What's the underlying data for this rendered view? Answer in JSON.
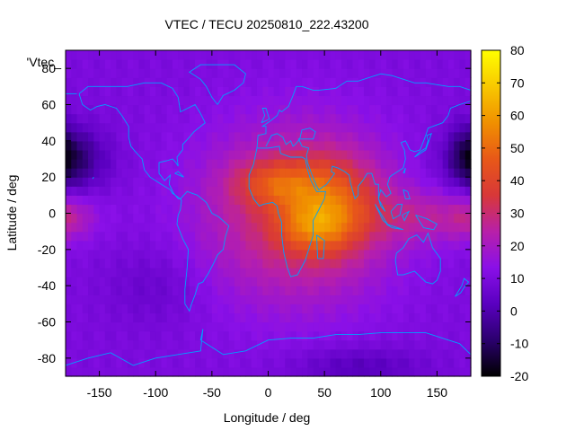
{
  "chart_data": {
    "type": "heatmap",
    "title": "VTEC / TECU 20250810_222.43200",
    "xlabel": "Longitude / deg",
    "ylabel": "Latitude / deg",
    "series_label": "'Vtec_",
    "xlim": [
      -180,
      180
    ],
    "ylim": [
      -90,
      90
    ],
    "x_ticks": [
      -150,
      -100,
      -50,
      0,
      50,
      100,
      150
    ],
    "y_ticks": [
      -80,
      -60,
      -40,
      -20,
      0,
      20,
      40,
      60,
      80
    ],
    "colorbar": {
      "range": [
        -20,
        80
      ],
      "ticks": [
        -20,
        -10,
        0,
        10,
        20,
        30,
        40,
        50,
        60,
        70,
        80
      ],
      "palette": [
        "#000000",
        "#2b006e",
        "#5a00c0",
        "#8a10e8",
        "#b820a8",
        "#d83838",
        "#e85818",
        "#f09000",
        "#f8c800",
        "#ffff00"
      ]
    },
    "field_model": {
      "background_tecu": 10,
      "peak_tecu": 76,
      "peak_lon": 55,
      "peak_lat": 5,
      "description": "daytime equatorial anomaly over Africa / Indian Ocean; low TEC over North Pacific"
    },
    "coastline_color": "#00a0ff"
  }
}
